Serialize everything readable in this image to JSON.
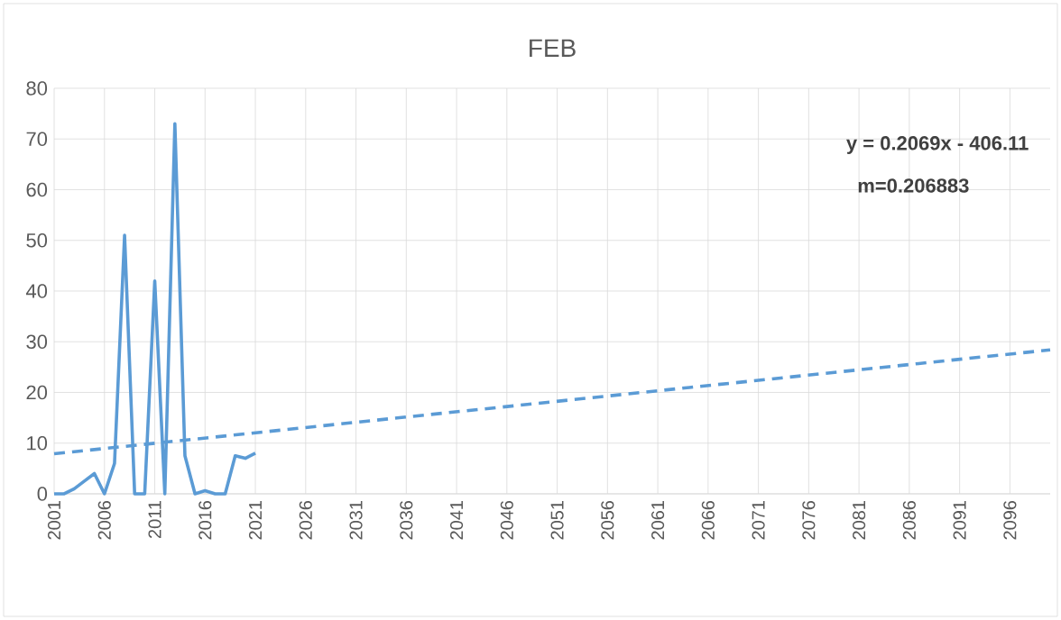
{
  "chart_data": {
    "type": "line",
    "title": "FEB",
    "x": [
      2001,
      2002,
      2003,
      2004,
      2005,
      2006,
      2007,
      2008,
      2009,
      2010,
      2011,
      2012,
      2013,
      2014,
      2015,
      2016,
      2017,
      2018,
      2019,
      2020,
      2021
    ],
    "series": [
      {
        "color": "#5b9bd5",
        "values": [
          0,
          0,
          1,
          2.5,
          4,
          0,
          6,
          51,
          0,
          0,
          42,
          0,
          73,
          7.5,
          0,
          0.6,
          0,
          0,
          7.5,
          7,
          8
        ],
        "line_style": "solid"
      },
      {
        "type": "line",
        "color": "#5b9bd5",
        "x": [
          2001,
          2100
        ],
        "values": [
          7.9,
          28.4
        ],
        "line_style": "dashed"
      }
    ],
    "xlim": [
      2001,
      2100
    ],
    "xticks": [
      2001,
      2006,
      2011,
      2016,
      2021,
      2026,
      2031,
      2036,
      2041,
      2046,
      2051,
      2056,
      2061,
      2066,
      2071,
      2076,
      2081,
      2086,
      2091,
      2096
    ],
    "ylim": [
      0,
      80
    ],
    "yticks": [
      0,
      10,
      20,
      30,
      40,
      50,
      60,
      70,
      80
    ],
    "grid": true,
    "marker": "none",
    "annotations": [
      "y = 0.2069x - 406.11",
      "m=0.206883"
    ]
  }
}
